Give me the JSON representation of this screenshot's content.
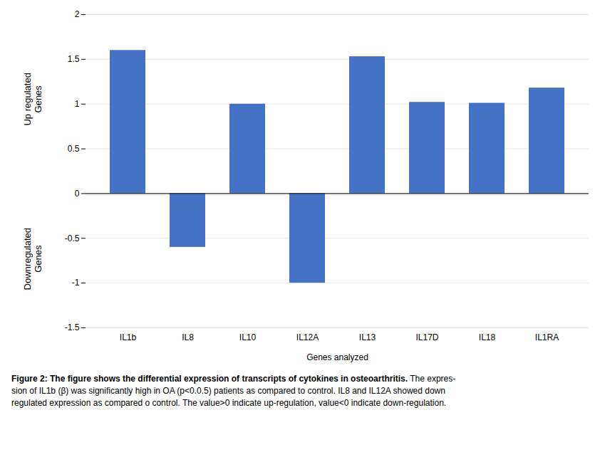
{
  "chart_data": {
    "type": "bar",
    "categories": [
      "IL1b",
      "IL8",
      "IL10",
      "IL12A",
      "IL13",
      "IL17D",
      "IL18",
      "IL1RA"
    ],
    "values": [
      1.6,
      -0.6,
      1.0,
      -1.0,
      1.53,
      1.02,
      1.01,
      1.18
    ],
    "color": "#4472C4",
    "xlabel": "Genes analyzed",
    "annotations": [
      "Up regulated\nGenes",
      "Downregulated\nGenes"
    ],
    "ylim": [
      -1.5,
      2.0
    ],
    "yticks": [
      -1.5,
      -1,
      -0.5,
      0,
      0.5,
      1,
      1.5,
      2
    ],
    "grid": true,
    "caption_title": "Figure 2: The figure shows the differential expression of transcripts of cytokines in osteoarthritis.",
    "caption": [
      "The expres-",
      "sion of IL1b (β) was significantly high in OA (p<0.0.5) patients as compared to control. IL8 and IL12A showed down",
      "regulated expression as compared o control. The value>0 indicate up-regulation, value<0 indicate down-regulation."
    ]
  }
}
